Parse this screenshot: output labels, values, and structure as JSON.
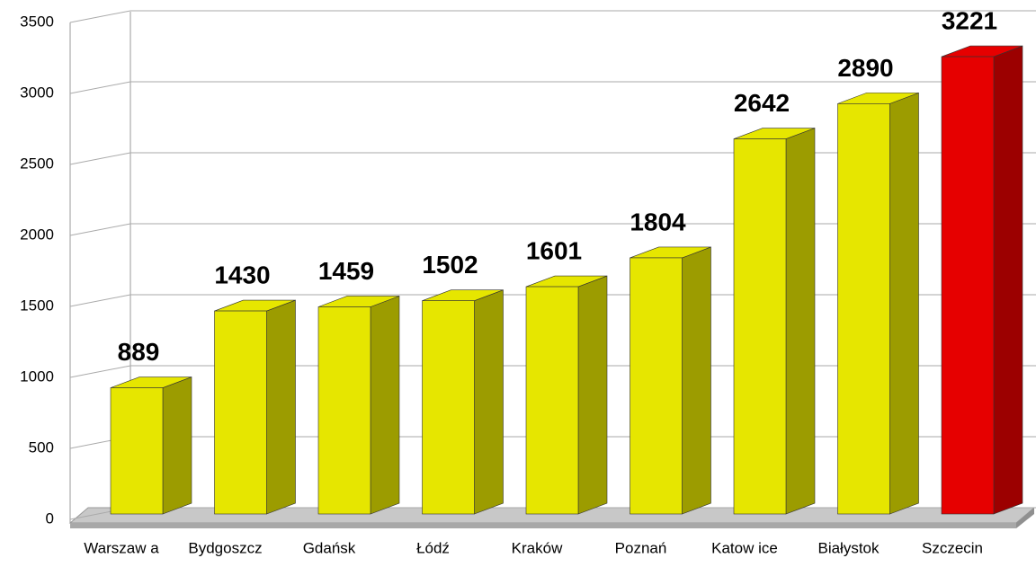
{
  "chart_data": {
    "type": "bar3d",
    "categories": [
      "Warszaw a",
      "Bydgoszcz",
      "Gdańsk",
      "Łódź",
      "Kraków",
      "Poznań",
      "Katow ice",
      "Białystok",
      "Szczecin"
    ],
    "values": [
      889,
      1430,
      1459,
      1502,
      1601,
      1804,
      2642,
      2890,
      3221
    ],
    "colors": [
      "#e6e600",
      "#e6e600",
      "#e6e600",
      "#e6e600",
      "#e6e600",
      "#e6e600",
      "#e6e600",
      "#e6e600",
      "#e60000"
    ],
    "ylim": [
      0,
      3500
    ],
    "yticks": [
      0,
      500,
      1000,
      1500,
      2000,
      2500,
      3000,
      3500
    ],
    "grid": true
  }
}
